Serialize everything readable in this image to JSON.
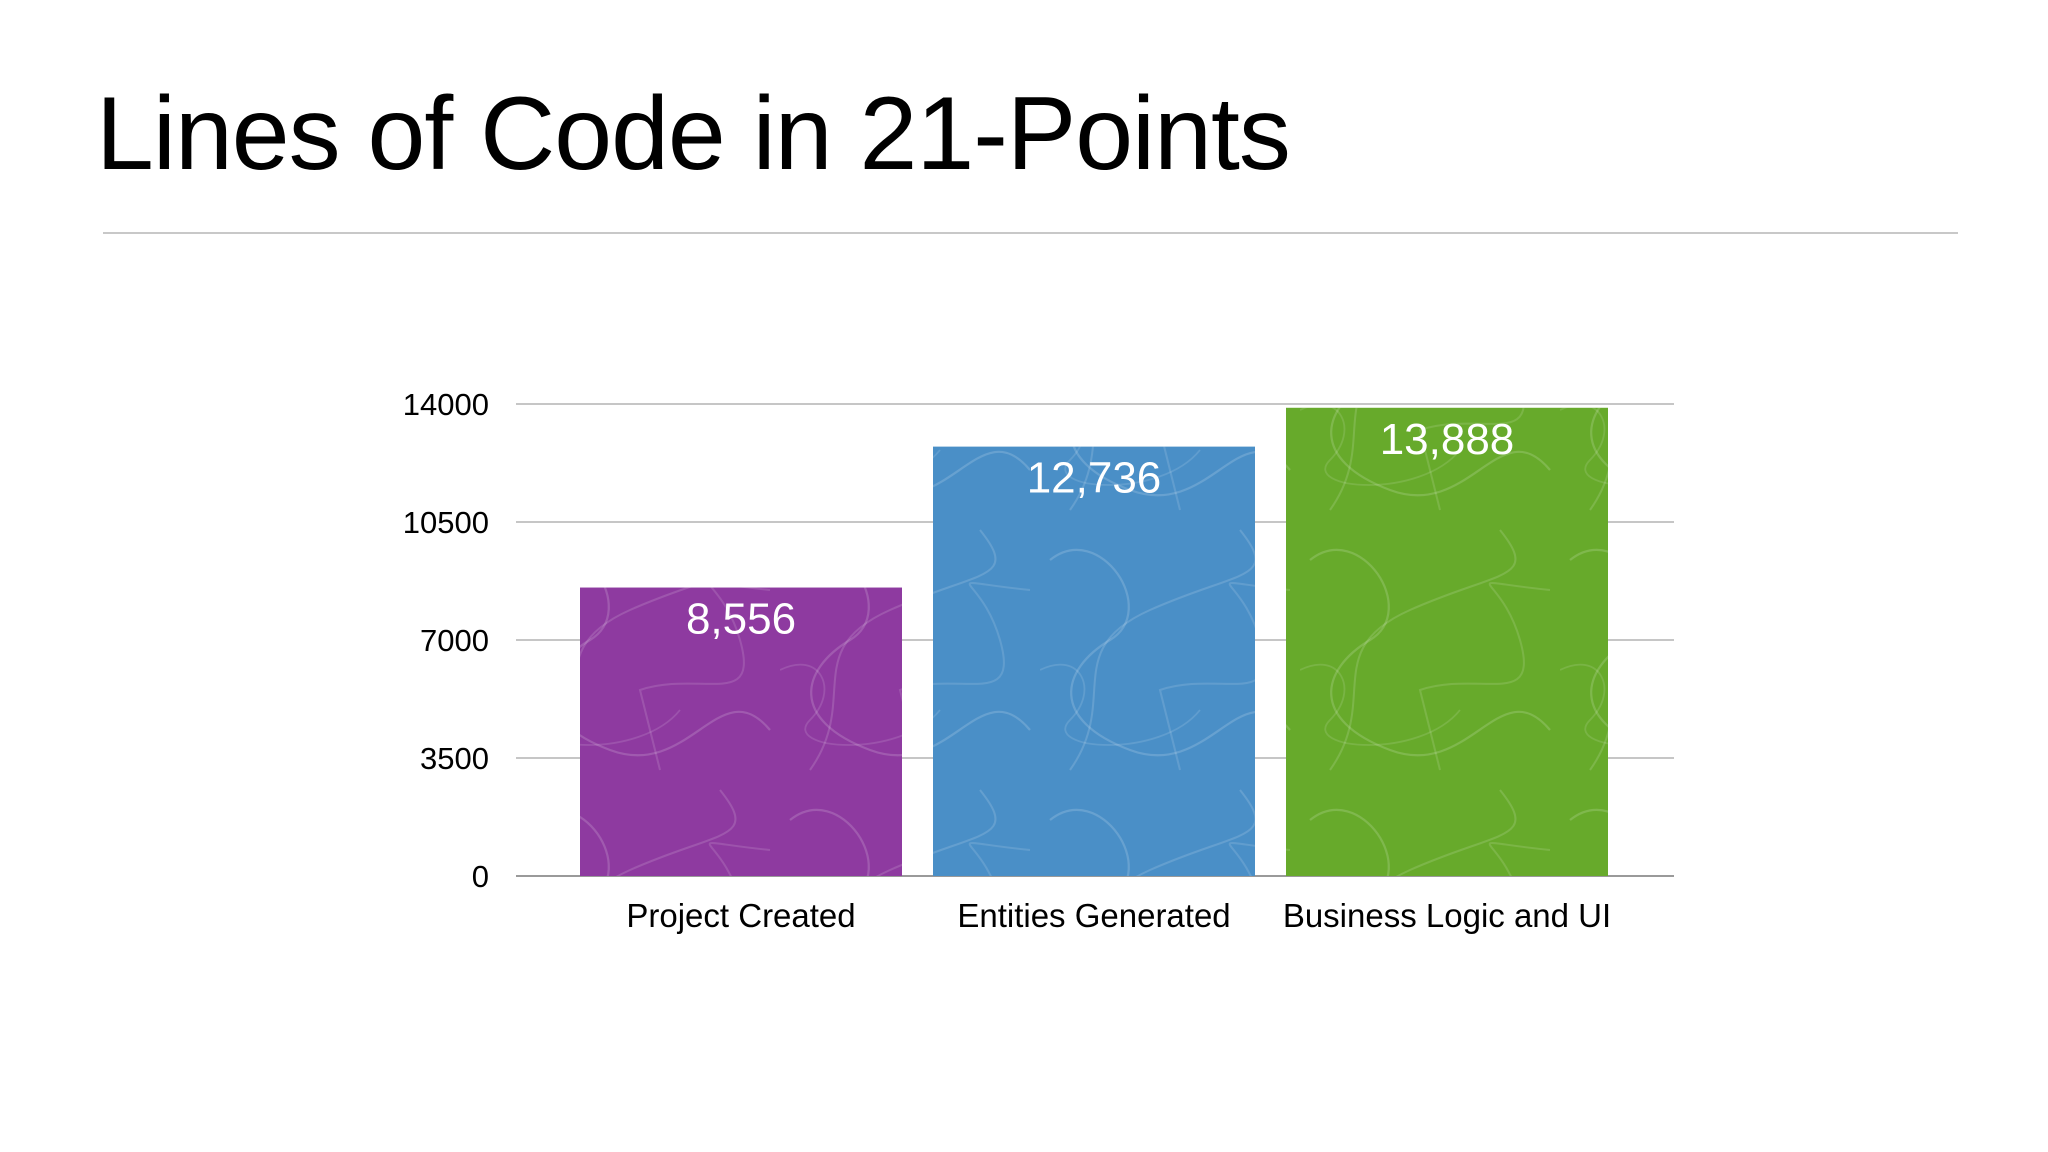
{
  "slide": {
    "title": "Lines of Code in 21-Points"
  },
  "chart_data": {
    "type": "bar",
    "title": "",
    "xlabel": "",
    "ylabel": "",
    "categories": [
      "Project Created",
      "Entities Generated",
      "Business Logic and UI"
    ],
    "values": [
      8556,
      12736,
      13888
    ],
    "value_labels": [
      "8,556",
      "12,736",
      "13,888"
    ],
    "colors": [
      "#8e3aa0",
      "#4a8fc7",
      "#67aa2b"
    ],
    "ylim": [
      0,
      14000
    ],
    "yticks": [
      0,
      3500,
      7000,
      10500,
      14000
    ],
    "ytick_labels": [
      "0",
      "3500",
      "7000",
      "10500",
      "14000"
    ],
    "grid": true,
    "legend": "none"
  }
}
